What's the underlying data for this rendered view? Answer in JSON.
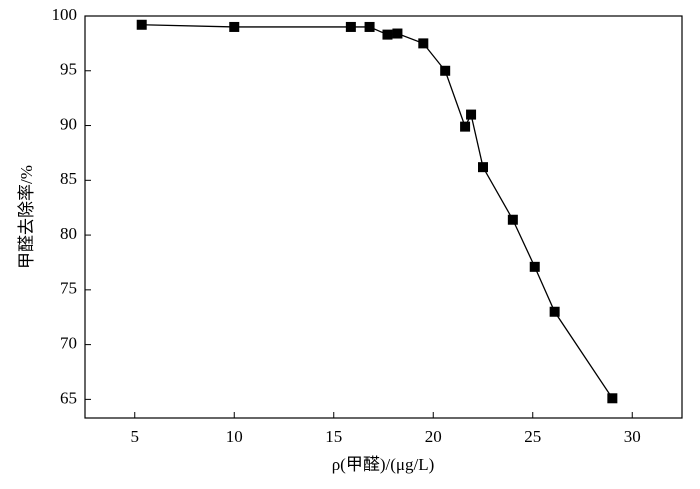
{
  "chart_data": {
    "type": "line",
    "x_label": "ρ(甲醛)/(μg/L)",
    "y_label": "甲醛去除率/%",
    "x": [
      5.35,
      10,
      15.86,
      16.8,
      17.7,
      18.2,
      19.5,
      20.6,
      21.6,
      21.9,
      22.5,
      24.0,
      25.1,
      26.1,
      29.0
    ],
    "series": [
      {
        "color": "#000000",
        "values": [
          99.2,
          99.0,
          99.0,
          99.0,
          98.3,
          98.4,
          97.5,
          95.0,
          89.9,
          91.0,
          86.2,
          81.4,
          77.1,
          73.0,
          65.1
        ]
      }
    ],
    "xlim": [
      2.5,
      32.5
    ],
    "xticks": [
      5,
      10,
      15,
      20,
      25,
      30
    ],
    "ylim": [
      63.3,
      100
    ],
    "yticks": [
      65,
      70,
      75,
      80,
      85,
      90,
      95,
      100
    ],
    "grid": false
  }
}
